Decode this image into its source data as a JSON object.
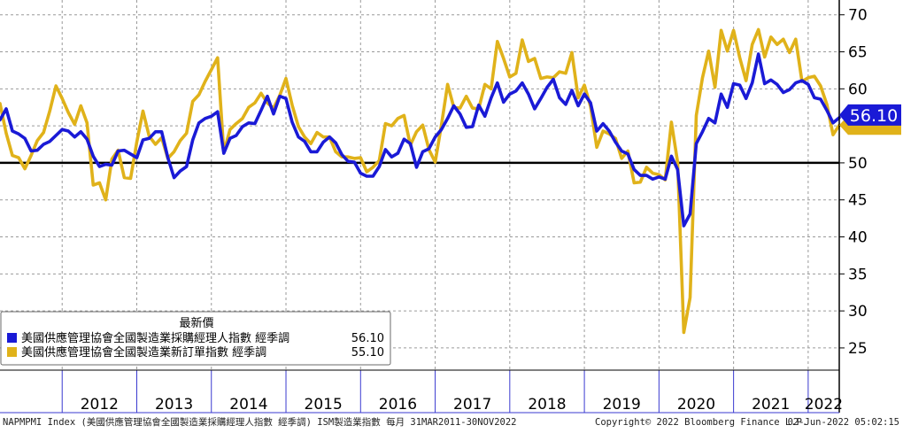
{
  "chart_data": {
    "type": "line",
    "ylim": [
      22,
      72
    ],
    "y_ticks": [
      25,
      30,
      35,
      40,
      45,
      50,
      55,
      60,
      65,
      70
    ],
    "x_range": [
      "2011-03",
      "2022-06"
    ],
    "year_labels": [
      "2012",
      "2013",
      "2014",
      "2015",
      "2016",
      "2017",
      "2018",
      "2019",
      "2020",
      "2021",
      "2022"
    ],
    "reference_line": 50,
    "grid": true,
    "legend": {
      "title": "最新價",
      "placement": "bottom-left",
      "entries": [
        {
          "label": "美國供應管理協會全國製造業採購經理人指數 經季調",
          "value": "56.10",
          "color": "#1a1ad6"
        },
        {
          "label": "美國供應管理協會全國製造業新訂單指數 經季調",
          "value": "55.10",
          "color": "#e0b21a"
        }
      ]
    },
    "last_value_tag": "56.10",
    "series": [
      {
        "name": "美國供應管理協會全國製造業採購經理人指數 經季調",
        "color": "#1a1ad6",
        "start": "2011-03",
        "values": [
          55.8,
          57.3,
          54.3,
          53.9,
          53.3,
          51.6,
          51.7,
          52.5,
          52.9,
          53.7,
          54.5,
          54.3,
          53.5,
          54.2,
          53.2,
          50.9,
          49.5,
          49.8,
          49.7,
          51.6,
          51.7,
          51.2,
          50.7,
          53.1,
          53.3,
          54.2,
          54.2,
          50.7,
          48.0,
          48.9,
          49.5,
          53.1,
          55.4,
          56.0,
          56.3,
          56.9,
          51.3,
          53.3,
          53.7,
          54.9,
          55.4,
          55.3,
          57.1,
          59.0,
          56.6,
          59.0,
          58.7,
          55.5,
          53.5,
          52.9,
          51.5,
          51.5,
          52.8,
          53.5,
          52.7,
          51.1,
          50.2,
          50.1,
          48.6,
          48.2,
          48.2,
          49.5,
          51.8,
          50.8,
          51.3,
          53.2,
          52.6,
          49.4,
          51.5,
          51.9,
          53.5,
          54.5,
          56.0,
          57.7,
          56.6,
          54.8,
          54.9,
          57.8,
          56.3,
          58.8,
          60.8,
          58.2,
          59.3,
          59.7,
          60.8,
          59.3,
          57.3,
          58.7,
          60.2,
          61.3,
          58.8,
          57.9,
          59.8,
          57.7,
          59.3,
          58.1,
          54.3,
          55.3,
          54.3,
          52.8,
          51.6,
          51.2,
          49.1,
          48.3,
          48.3,
          47.8,
          48.1,
          47.8,
          50.9,
          49.1,
          41.5,
          43.1,
          52.6,
          54.2,
          56.0,
          55.4,
          59.3,
          57.5,
          60.7,
          60.5,
          58.7,
          60.8,
          64.7,
          60.7,
          61.2,
          60.6,
          59.5,
          59.9,
          60.8,
          61.1,
          60.6,
          58.8,
          58.6,
          57.1,
          55.4,
          56.1
        ]
      },
      {
        "name": "美國供應管理協會全國製造業新訂單指數 經季調",
        "color": "#e0b21a",
        "start": "2011-03",
        "values": [
          58.0,
          54.0,
          51.0,
          50.7,
          49.2,
          51.0,
          53.0,
          54.1,
          57.0,
          60.4,
          58.7,
          56.8,
          55.2,
          57.7,
          55.4,
          47.0,
          47.3,
          45.0,
          50.5,
          51.7,
          48.0,
          47.9,
          52.8,
          57.0,
          53.6,
          52.5,
          53.4,
          50.6,
          51.5,
          53.0,
          54.0,
          58.3,
          59.2,
          61.0,
          62.6,
          64.2,
          51.4,
          54.5,
          55.3,
          56.0,
          57.5,
          58.1,
          59.4,
          58.1,
          57.4,
          59.1,
          61.4,
          57.8,
          54.9,
          53.5,
          52.6,
          54.1,
          53.5,
          53.5,
          51.5,
          50.8,
          50.8,
          50.6,
          50.7,
          48.8,
          49.4,
          50.3,
          55.3,
          55.0,
          56.0,
          56.4,
          52.4,
          54.2,
          55.1,
          51.8,
          50.1,
          55.1,
          60.6,
          57.5,
          57.4,
          59.0,
          57.4,
          57.3,
          60.6,
          60.0,
          66.4,
          64.1,
          61.6,
          62.1,
          66.6,
          63.7,
          64.1,
          61.4,
          61.6,
          61.5,
          62.3,
          62.1,
          64.9,
          58.8,
          60.5,
          57.6,
          52.1,
          54.3,
          53.9,
          53.3,
          50.6,
          51.6,
          47.3,
          47.4,
          49.4,
          48.6,
          48.4,
          47.7,
          55.5,
          50.1,
          27.1,
          31.8,
          56.4,
          61.5,
          65.1,
          60.2,
          67.9,
          65.1,
          67.9,
          64.2,
          61.1,
          66.0,
          68.0,
          64.3,
          67.0,
          66.0,
          66.7,
          64.9,
          66.7,
          61.0,
          61.5,
          61.7,
          60.4,
          57.9,
          53.8,
          55.1
        ]
      }
    ]
  },
  "footer": {
    "left": "NAPMPMI Index (美國供應管理協會全國製造業採購經理人指數 經季調) ISM製造業指數  每月 31MAR2011-30NOV2022",
    "center": "Copyright© 2022 Bloomberg Finance L.P.",
    "right": "02-Jun-2022 05:02:15"
  }
}
